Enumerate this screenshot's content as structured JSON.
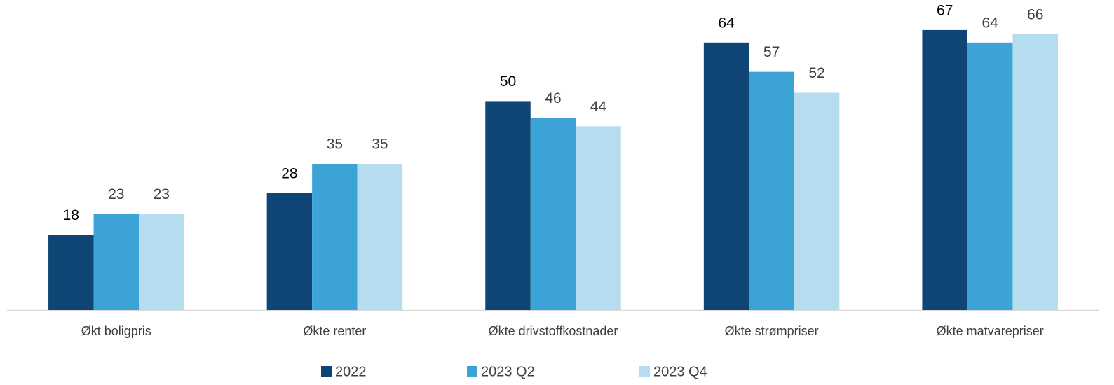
{
  "chart_data": {
    "type": "bar",
    "categories": [
      "Økt boligpris",
      "Økte renter",
      "Økte drivstoffkostnader",
      "Økte strømpriser",
      "Økte matvarepriser"
    ],
    "series": [
      {
        "name": "2022",
        "color": "#0f4575",
        "values": [
          18,
          28,
          50,
          64,
          67
        ]
      },
      {
        "name": "2023 Q2",
        "color": "#3ba3d5",
        "values": [
          23,
          35,
          46,
          57,
          64
        ]
      },
      {
        "name": "2023 Q4",
        "color": "#b6dcef",
        "values": [
          23,
          35,
          44,
          52,
          66
        ]
      }
    ],
    "ylim": [
      0,
      70
    ],
    "legend": "bottom"
  }
}
